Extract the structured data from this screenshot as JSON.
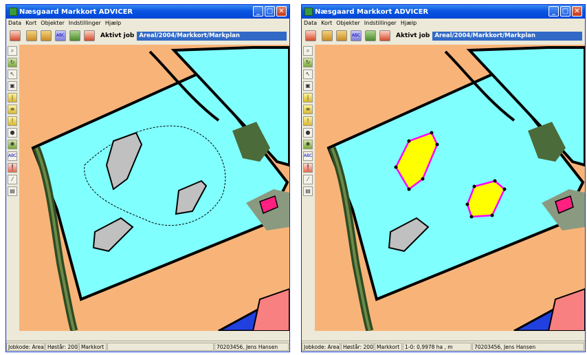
{
  "window_title": "Næsgaard Markkort ADVICER",
  "menu": [
    "Data",
    "Kort",
    "Objekter",
    "Indstillinger",
    "Hjælp"
  ],
  "toolbar": {
    "active_job_label": "Aktivt job",
    "active_job_value": "Areal/2004/Markkort/Markplan"
  },
  "left_tools": [
    "magnifier-icon",
    "refresh-icon",
    "pointer-icon",
    "select-area-icon",
    "ruler-icon",
    "measure-icon",
    "marker-icon",
    "person-icon",
    "plant-icon",
    "text-icon",
    "pin-icon",
    "split-icon",
    "print-icon"
  ],
  "left_tool_text": {
    "abc": "ABC"
  },
  "status_left": {
    "jobkode": "Jobkode: Areal",
    "hostar": "Høstår: 2004",
    "layer": "Markkort",
    "user": "70203456, Jens Hansen"
  },
  "status_right": {
    "jobkode": "Jobkode: Areal",
    "hostar": "Høstår: 2004",
    "layer": "Markkort",
    "measure": "1-0: 0,9978 ha ,  m",
    "user": "70203456, Jens Hansen"
  },
  "colors": {
    "field_fill": "#80ffff",
    "neighbor_fill": "#f8b478",
    "obstacle_fill": "#c0c0c0",
    "selected_fill": "#ffff00",
    "selected_outline": "#ff00ff",
    "accent_pink": "#ff2080",
    "blue_area": "#2040e0",
    "salmon_area": "#f88080",
    "titlebar": "#0a55e0"
  }
}
